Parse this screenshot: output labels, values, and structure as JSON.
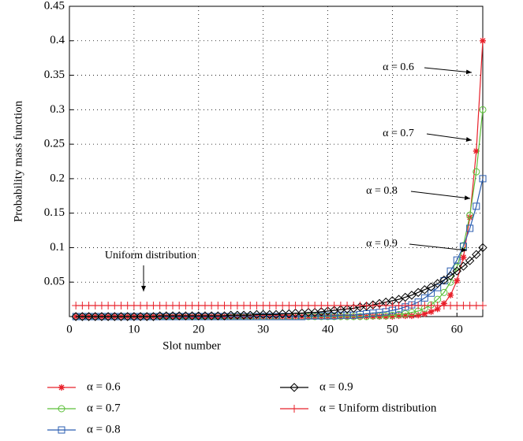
{
  "chart_data": {
    "type": "line",
    "xlabel": "Slot number",
    "ylabel": "Probability mass function",
    "x": [
      1,
      2,
      3,
      4,
      5,
      6,
      7,
      8,
      9,
      10,
      11,
      12,
      13,
      14,
      15,
      16,
      17,
      18,
      19,
      20,
      21,
      22,
      23,
      24,
      25,
      26,
      27,
      28,
      29,
      30,
      31,
      32,
      33,
      34,
      35,
      36,
      37,
      38,
      39,
      40,
      41,
      42,
      43,
      44,
      45,
      46,
      47,
      48,
      49,
      50,
      51,
      52,
      53,
      54,
      55,
      56,
      57,
      58,
      59,
      60,
      61,
      62,
      63,
      64
    ],
    "xlim": [
      0,
      64
    ],
    "xticks": [
      0,
      10,
      20,
      30,
      40,
      50,
      60
    ],
    "ylim": [
      0,
      0.45
    ],
    "yticks": [
      0.05,
      0.1,
      0.15,
      0.2,
      0.25,
      0.3,
      0.35,
      0.4,
      0.45
    ],
    "grid": true,
    "series": [
      {
        "name": "α = 0.6",
        "color": "#e8202a",
        "marker": "star",
        "values": [
          0,
          0,
          0,
          0,
          0,
          0,
          0,
          0,
          0,
          0,
          0,
          0,
          0,
          0,
          0,
          0,
          0,
          0,
          0,
          0,
          0,
          0,
          0,
          0,
          0,
          0,
          0,
          0,
          0,
          0,
          0,
          0,
          0,
          0,
          0,
          0,
          0,
          0,
          0,
          0,
          0,
          0,
          0,
          0,
          0,
          0,
          0,
          0,
          0,
          0,
          0.001,
          0.001,
          0.001,
          0.002,
          0.004,
          0.007,
          0.011,
          0.019,
          0.031,
          0.052,
          0.086,
          0.144,
          0.24,
          0.4
        ]
      },
      {
        "name": "α = 0.7",
        "color": "#5cbf3a",
        "marker": "circle",
        "values": [
          0,
          0,
          0,
          0,
          0,
          0,
          0,
          0,
          0,
          0,
          0,
          0,
          0,
          0,
          0,
          0,
          0,
          0,
          0,
          0,
          0,
          0,
          0,
          0,
          0,
          0,
          0,
          0,
          0,
          0,
          0,
          0,
          0,
          0,
          0,
          0,
          0,
          0,
          0,
          0,
          0,
          0,
          0,
          0,
          0,
          0,
          0.001,
          0.001,
          0.001,
          0.002,
          0.003,
          0.004,
          0.006,
          0.008,
          0.012,
          0.017,
          0.025,
          0.035,
          0.05,
          0.072,
          0.103,
          0.147,
          0.21,
          0.3
        ]
      },
      {
        "name": "α = 0.8",
        "color": "#2a5db0",
        "marker": "square",
        "values": [
          0,
          0,
          0,
          0,
          0,
          0,
          0,
          0,
          0,
          0,
          0,
          0,
          0,
          0,
          0,
          0,
          0,
          0,
          0,
          0,
          0,
          0,
          0,
          0,
          0,
          0,
          0,
          0,
          0,
          0,
          0,
          0,
          0,
          0,
          0,
          0,
          0.001,
          0.001,
          0.001,
          0.001,
          0.001,
          0.002,
          0.002,
          0.002,
          0.003,
          0.004,
          0.005,
          0.006,
          0.007,
          0.009,
          0.011,
          0.014,
          0.017,
          0.021,
          0.027,
          0.034,
          0.042,
          0.052,
          0.066,
          0.082,
          0.102,
          0.128,
          0.16,
          0.2
        ]
      },
      {
        "name": "α = 0.9",
        "color": "#000000",
        "marker": "diamond",
        "values": [
          0,
          0,
          0,
          0,
          0,
          0,
          0,
          0,
          0,
          0,
          0,
          0,
          0,
          0.001,
          0.001,
          0.001,
          0.001,
          0.001,
          0.001,
          0.001,
          0.001,
          0.001,
          0.001,
          0.001,
          0.002,
          0.002,
          0.002,
          0.002,
          0.003,
          0.003,
          0.003,
          0.003,
          0.004,
          0.004,
          0.005,
          0.005,
          0.006,
          0.006,
          0.007,
          0.008,
          0.009,
          0.01,
          0.011,
          0.012,
          0.014,
          0.015,
          0.017,
          0.019,
          0.021,
          0.023,
          0.025,
          0.028,
          0.031,
          0.035,
          0.039,
          0.043,
          0.048,
          0.053,
          0.059,
          0.066,
          0.073,
          0.081,
          0.09,
          0.1
        ]
      },
      {
        "name": "α = Uniform distribution",
        "color": "#e8202a",
        "marker": "plus",
        "values": [
          0.016,
          0.016,
          0.016,
          0.016,
          0.016,
          0.016,
          0.016,
          0.016,
          0.016,
          0.016,
          0.016,
          0.016,
          0.016,
          0.016,
          0.016,
          0.016,
          0.016,
          0.016,
          0.016,
          0.016,
          0.016,
          0.016,
          0.016,
          0.016,
          0.016,
          0.016,
          0.016,
          0.016,
          0.016,
          0.016,
          0.016,
          0.016,
          0.016,
          0.016,
          0.016,
          0.016,
          0.016,
          0.016,
          0.016,
          0.016,
          0.016,
          0.016,
          0.016,
          0.016,
          0.016,
          0.016,
          0.016,
          0.016,
          0.016,
          0.016,
          0.016,
          0.016,
          0.016,
          0.016,
          0.016,
          0.016,
          0.016,
          0.016,
          0.016,
          0.016,
          0.016,
          0.016,
          0.016,
          0.016
        ]
      }
    ],
    "annotations": [
      "α = 0.6",
      "α = 0.7",
      "α = 0.8",
      "α = 0.9",
      "Uniform distribution"
    ]
  }
}
